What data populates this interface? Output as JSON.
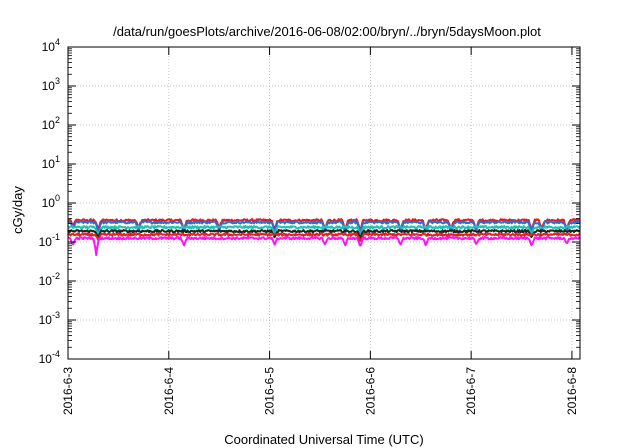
{
  "chart_data": {
    "type": "line",
    "title": "/data/run/goesPlots/archive/2016-06-08/02:00/bryn/../bryn/5daysMoon.plot",
    "xlabel": "Coordinated Universal Time (UTC)",
    "ylabel": "cGy/day",
    "yscale": "log",
    "ylim": [
      0.0001,
      10000
    ],
    "xlim": [
      0,
      5.08
    ],
    "grid": true,
    "x_ticks": [
      {
        "x": 0,
        "label": "2016-6-3"
      },
      {
        "x": 1,
        "label": "2016-6-4"
      },
      {
        "x": 2,
        "label": "2016-6-5"
      },
      {
        "x": 3,
        "label": "2016-6-6"
      },
      {
        "x": 4,
        "label": "2016-6-7"
      },
      {
        "x": 5,
        "label": "2016-6-8"
      }
    ],
    "y_ticks": [
      {
        "value": 0.0001,
        "base": "10",
        "exp": "-4"
      },
      {
        "value": 0.001,
        "base": "10",
        "exp": "-3"
      },
      {
        "value": 0.01,
        "base": "10",
        "exp": "-2"
      },
      {
        "value": 0.1,
        "base": "10",
        "exp": "-1"
      },
      {
        "value": 1,
        "base": "10",
        "exp": "0"
      },
      {
        "value": 10,
        "base": "10",
        "exp": "1"
      },
      {
        "value": 100,
        "base": "10",
        "exp": "2"
      },
      {
        "value": 1000,
        "base": "10",
        "exp": "3"
      },
      {
        "value": 10000,
        "base": "10",
        "exp": "4"
      }
    ],
    "series": [
      {
        "color": "#e41a1c",
        "base": 0.36,
        "dips": [
          [
            0.05,
            0.26
          ],
          [
            0.3,
            0.2
          ],
          [
            0.7,
            0.22
          ],
          [
            1.15,
            0.2
          ],
          [
            1.5,
            0.22
          ],
          [
            2.05,
            0.19
          ],
          [
            2.55,
            0.2
          ],
          [
            2.75,
            0.19
          ],
          [
            2.9,
            0.18
          ],
          [
            3.3,
            0.2
          ],
          [
            3.55,
            0.19
          ],
          [
            3.8,
            0.2
          ],
          [
            4.05,
            0.2
          ],
          [
            4.6,
            0.19
          ],
          [
            4.7,
            0.21
          ],
          [
            4.95,
            0.2
          ]
        ]
      },
      {
        "color": "#2b6fd6",
        "base": 0.32,
        "dips": [
          [
            0.05,
            0.23
          ],
          [
            0.3,
            0.17
          ],
          [
            0.7,
            0.19
          ],
          [
            1.15,
            0.18
          ],
          [
            1.5,
            0.2
          ],
          [
            2.05,
            0.17
          ],
          [
            2.55,
            0.18
          ],
          [
            2.75,
            0.16
          ],
          [
            2.9,
            0.16
          ],
          [
            3.3,
            0.18
          ],
          [
            3.55,
            0.17
          ],
          [
            3.8,
            0.18
          ],
          [
            4.05,
            0.18
          ],
          [
            4.6,
            0.17
          ],
          [
            4.7,
            0.18
          ],
          [
            4.95,
            0.18
          ]
        ]
      },
      {
        "color": "#1fc2b0",
        "base": 0.24,
        "dips": [
          [
            0.3,
            0.15
          ],
          [
            2.05,
            0.15
          ],
          [
            2.9,
            0.14
          ],
          [
            4.6,
            0.15
          ]
        ]
      },
      {
        "color": "#222222",
        "base": 0.19,
        "dips": [
          [
            0.3,
            0.13
          ],
          [
            2.05,
            0.13
          ],
          [
            2.9,
            0.12
          ],
          [
            4.6,
            0.13
          ]
        ]
      },
      {
        "color": "#e8201c",
        "base": 0.155,
        "dips": [
          [
            0.3,
            0.11
          ],
          [
            2.9,
            0.1
          ]
        ]
      },
      {
        "color": "#ff10ff",
        "base": 0.125,
        "dips": [
          [
            0.05,
            0.085
          ],
          [
            0.28,
            0.045
          ],
          [
            1.15,
            0.08
          ],
          [
            2.05,
            0.085
          ],
          [
            2.55,
            0.085
          ],
          [
            2.75,
            0.08
          ],
          [
            2.9,
            0.075
          ],
          [
            3.3,
            0.085
          ],
          [
            3.55,
            0.08
          ],
          [
            4.05,
            0.085
          ],
          [
            4.6,
            0.08
          ],
          [
            4.95,
            0.09
          ]
        ]
      }
    ]
  }
}
